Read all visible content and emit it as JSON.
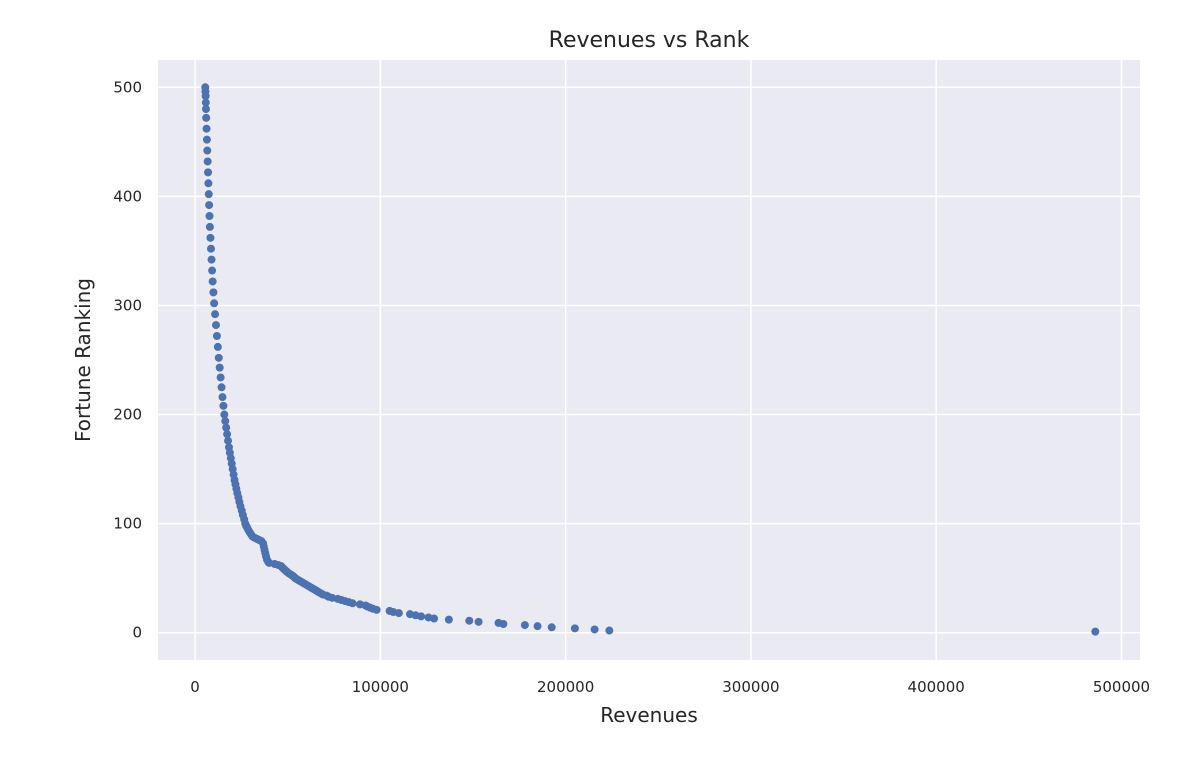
{
  "chart_data": {
    "type": "scatter",
    "title": "Revenues vs Rank",
    "xlabel": "Revenues",
    "ylabel": "Fortune Ranking",
    "xlim": [
      -20000,
      510000
    ],
    "ylim": [
      -25,
      525
    ],
    "xticks": [
      0,
      100000,
      200000,
      300000,
      400000,
      500000
    ],
    "yticks": [
      0,
      100,
      200,
      300,
      400,
      500
    ],
    "grid": true,
    "legend": "none",
    "series": [
      {
        "color": "#4c72b0",
        "points": [
          [
            485873,
            1
          ],
          [
            223604,
            2
          ],
          [
            215639,
            3
          ],
          [
            205004,
            4
          ],
          [
            192487,
            5
          ],
          [
            184840,
            6
          ],
          [
            178000,
            7
          ],
          [
            166380,
            8
          ],
          [
            163786,
            9
          ],
          [
            153032,
            10
          ],
          [
            148000,
            11
          ],
          [
            137000,
            12
          ],
          [
            129000,
            13
          ],
          [
            126000,
            14
          ],
          [
            122000,
            15
          ],
          [
            119000,
            16
          ],
          [
            116000,
            17
          ],
          [
            110000,
            18
          ],
          [
            107000,
            19
          ],
          [
            105000,
            20
          ],
          [
            98000,
            21
          ],
          [
            96000,
            22
          ],
          [
            94500,
            23
          ],
          [
            93000,
            24
          ],
          [
            92000,
            25
          ],
          [
            89000,
            26
          ],
          [
            85000,
            27
          ],
          [
            83000,
            28
          ],
          [
            81000,
            29
          ],
          [
            79000,
            30
          ],
          [
            77000,
            31
          ],
          [
            74000,
            32
          ],
          [
            72000,
            33
          ],
          [
            71000,
            34
          ],
          [
            69000,
            35
          ],
          [
            68000,
            36
          ],
          [
            67000,
            37
          ],
          [
            66000,
            38
          ],
          [
            65000,
            39
          ],
          [
            64000,
            40
          ],
          [
            63000,
            41
          ],
          [
            62000,
            42
          ],
          [
            61000,
            43
          ],
          [
            60000,
            44
          ],
          [
            59000,
            45
          ],
          [
            58000,
            46
          ],
          [
            57000,
            47
          ],
          [
            56000,
            48
          ],
          [
            55000,
            49
          ],
          [
            54000,
            50
          ],
          [
            53500,
            51
          ],
          [
            52800,
            52
          ],
          [
            52000,
            53
          ],
          [
            51000,
            54
          ],
          [
            50200,
            55
          ],
          [
            49500,
            56
          ],
          [
            48800,
            57
          ],
          [
            48200,
            58
          ],
          [
            47600,
            59
          ],
          [
            47000,
            60
          ],
          [
            46500,
            61
          ],
          [
            45000,
            62
          ],
          [
            43000,
            63
          ],
          [
            40000,
            64
          ],
          [
            39500,
            65
          ],
          [
            38800,
            67
          ],
          [
            38300,
            70
          ],
          [
            37900,
            73
          ],
          [
            37500,
            76
          ],
          [
            37100,
            79
          ],
          [
            36700,
            82
          ],
          [
            35800,
            84
          ],
          [
            34600,
            85
          ],
          [
            33400,
            86
          ],
          [
            32200,
            87
          ],
          [
            31100,
            88
          ],
          [
            30300,
            90
          ],
          [
            29500,
            92
          ],
          [
            28800,
            94
          ],
          [
            28200,
            96
          ],
          [
            27600,
            98
          ],
          [
            27100,
            100
          ],
          [
            26500,
            104
          ],
          [
            25800,
            108
          ],
          [
            25200,
            112
          ],
          [
            24500,
            116
          ],
          [
            23900,
            120
          ],
          [
            23400,
            124
          ],
          [
            22800,
            128
          ],
          [
            22300,
            132
          ],
          [
            21800,
            136
          ],
          [
            21300,
            140
          ],
          [
            20800,
            145
          ],
          [
            20300,
            150
          ],
          [
            19800,
            155
          ],
          [
            19300,
            160
          ],
          [
            18800,
            165
          ],
          [
            18300,
            170
          ],
          [
            17800,
            176
          ],
          [
            17300,
            182
          ],
          [
            16800,
            188
          ],
          [
            16300,
            194
          ],
          [
            15800,
            200
          ],
          [
            15300,
            208
          ],
          [
            14800,
            216
          ],
          [
            14300,
            225
          ],
          [
            13800,
            234
          ],
          [
            13300,
            243
          ],
          [
            12800,
            252
          ],
          [
            12300,
            262
          ],
          [
            11800,
            272
          ],
          [
            11300,
            282
          ],
          [
            10800,
            292
          ],
          [
            10300,
            302
          ],
          [
            9900,
            312
          ],
          [
            9500,
            322
          ],
          [
            9200,
            332
          ],
          [
            8900,
            342
          ],
          [
            8600,
            352
          ],
          [
            8300,
            362
          ],
          [
            8000,
            372
          ],
          [
            7800,
            382
          ],
          [
            7600,
            392
          ],
          [
            7400,
            402
          ],
          [
            7200,
            412
          ],
          [
            7000,
            422
          ],
          [
            6800,
            432
          ],
          [
            6600,
            442
          ],
          [
            6400,
            452
          ],
          [
            6200,
            462
          ],
          [
            6000,
            472
          ],
          [
            5900,
            480
          ],
          [
            5800,
            486
          ],
          [
            5700,
            492
          ],
          [
            5600,
            496
          ],
          [
            5500,
            500
          ]
        ]
      }
    ]
  }
}
